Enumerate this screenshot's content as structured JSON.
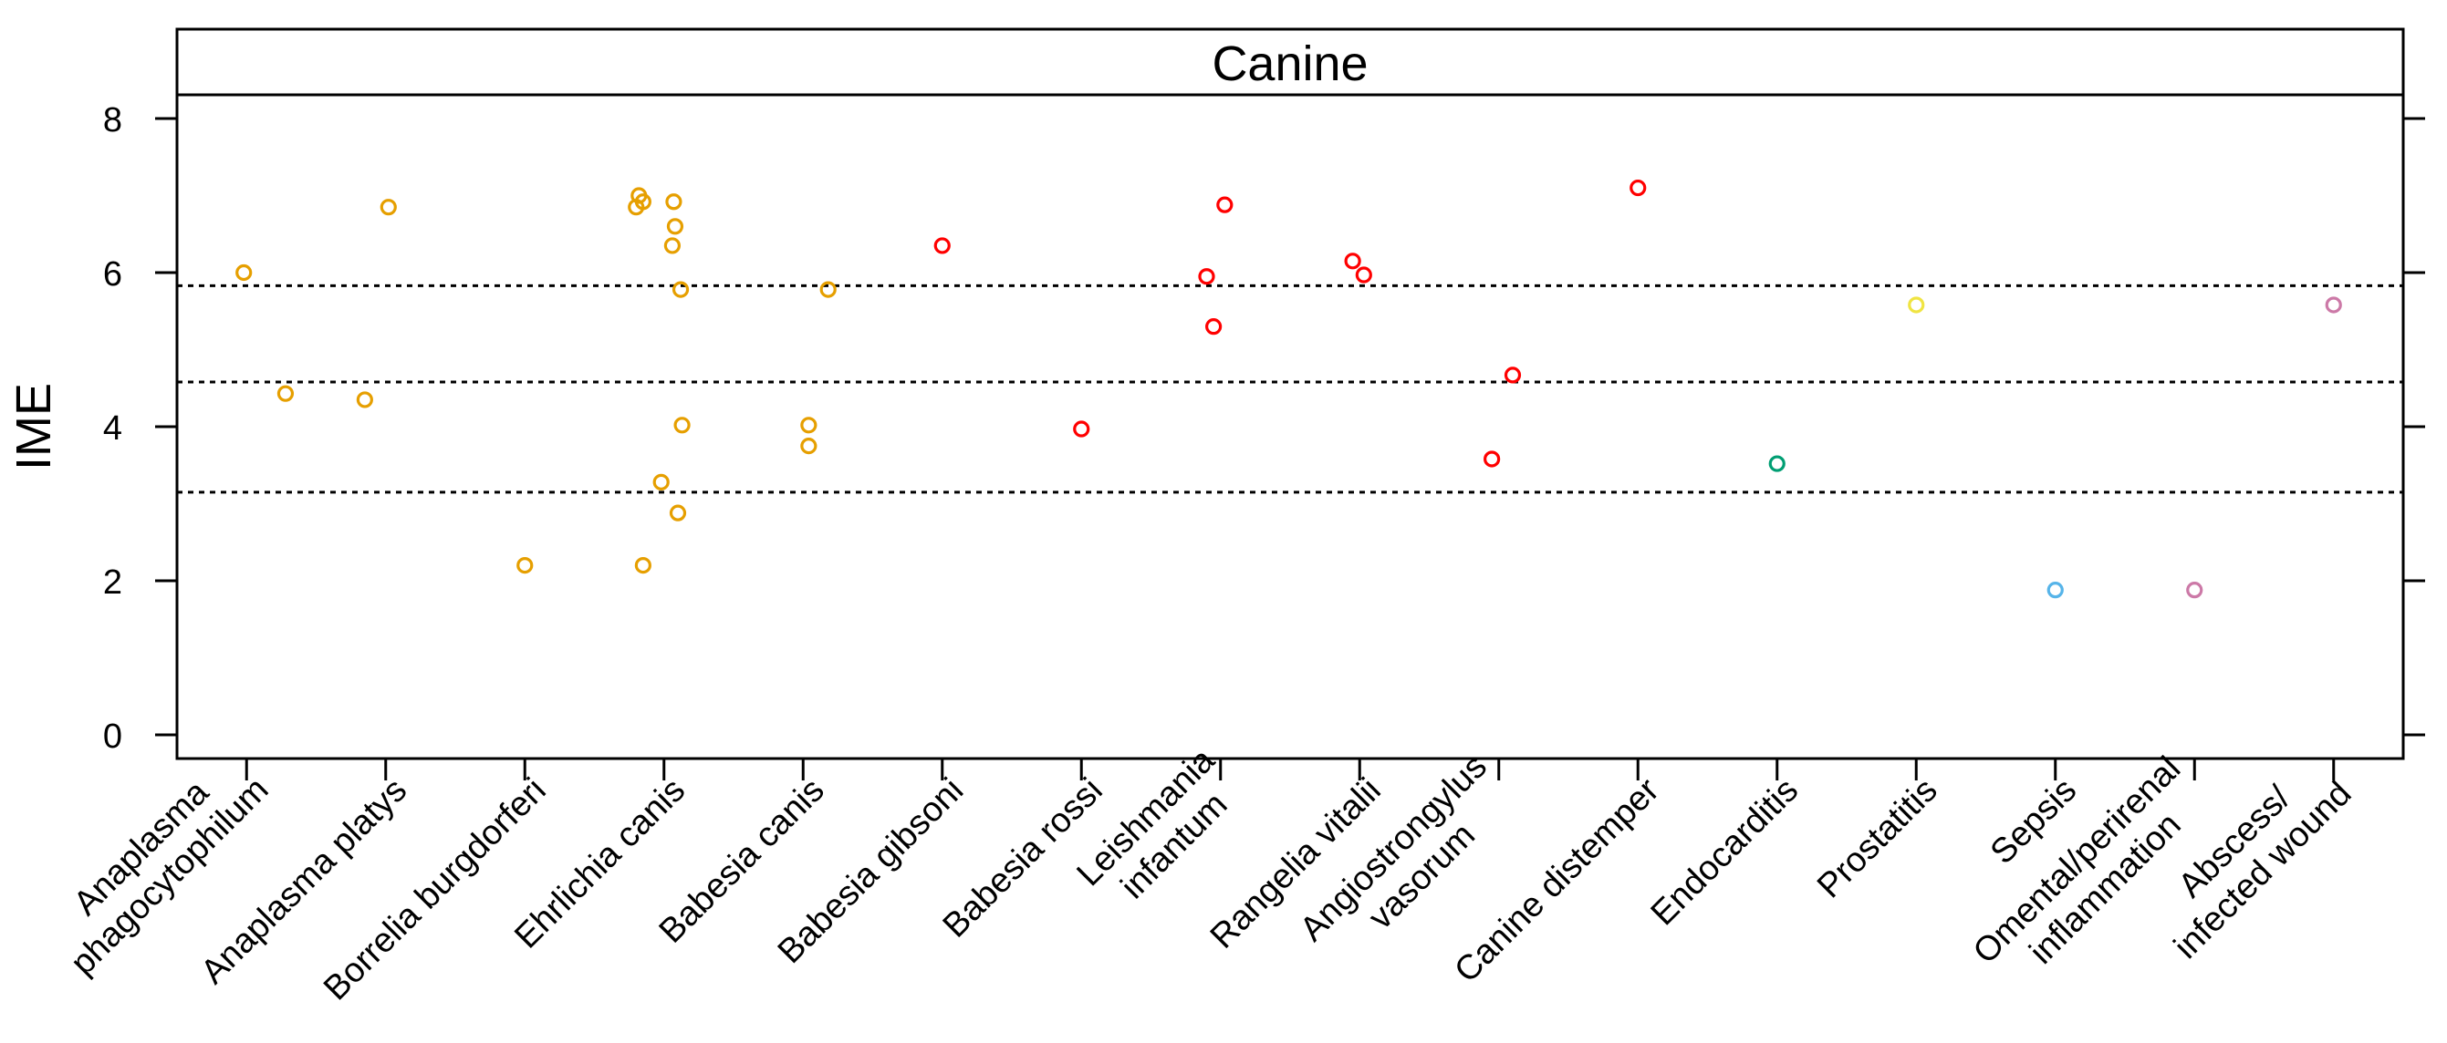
{
  "chart_data": {
    "type": "scatter",
    "title": "Canine",
    "ylabel": "IME",
    "xlabel": "",
    "ylim": [
      -0.3,
      9.2
    ],
    "yticks": [
      0,
      2,
      4,
      6,
      8
    ],
    "reference_lines": [
      5.83,
      4.58,
      3.15
    ],
    "categories": [
      [
        "Anaplasma",
        "phagocytophilum"
      ],
      [
        "Anaplasma platys"
      ],
      [
        "Borrelia burgdorferi"
      ],
      [
        "Ehrlichia canis"
      ],
      [
        "Babesia canis"
      ],
      [
        "Babesia gibsoni"
      ],
      [
        "Babesia rossi"
      ],
      [
        "Leishmania",
        "infantum"
      ],
      [
        "Rangelia vitalii"
      ],
      [
        "Angiostrongylus",
        "vasorum"
      ],
      [
        "Canine distemper"
      ],
      [
        "Endocarditis"
      ],
      [
        "Prostatitis"
      ],
      [
        "Sepsis"
      ],
      [
        "Omental/perirenal",
        "inflammation"
      ],
      [
        "Abscess/",
        "infected wound"
      ]
    ],
    "points": [
      {
        "category": 0,
        "jitter": -0.02,
        "y": 6.0,
        "color": "#E69F00"
      },
      {
        "category": 0,
        "jitter": 0.28,
        "y": 4.43,
        "color": "#E69F00"
      },
      {
        "category": 1,
        "jitter": -0.15,
        "y": 4.35,
        "color": "#E69F00"
      },
      {
        "category": 1,
        "jitter": 0.02,
        "y": 6.85,
        "color": "#E69F00"
      },
      {
        "category": 2,
        "jitter": 0.0,
        "y": 2.2,
        "color": "#E69F00"
      },
      {
        "category": 3,
        "jitter": -0.18,
        "y": 7.0,
        "color": "#E69F00"
      },
      {
        "category": 3,
        "jitter": -0.15,
        "y": 6.92,
        "color": "#E69F00"
      },
      {
        "category": 3,
        "jitter": -0.2,
        "y": 6.85,
        "color": "#E69F00"
      },
      {
        "category": 3,
        "jitter": 0.07,
        "y": 6.92,
        "color": "#E69F00"
      },
      {
        "category": 3,
        "jitter": 0.08,
        "y": 6.6,
        "color": "#E69F00"
      },
      {
        "category": 3,
        "jitter": 0.06,
        "y": 6.35,
        "color": "#E69F00"
      },
      {
        "category": 3,
        "jitter": 0.12,
        "y": 5.78,
        "color": "#E69F00"
      },
      {
        "category": 3,
        "jitter": 0.13,
        "y": 4.02,
        "color": "#E69F00"
      },
      {
        "category": 3,
        "jitter": -0.02,
        "y": 3.28,
        "color": "#E69F00"
      },
      {
        "category": 3,
        "jitter": 0.1,
        "y": 2.88,
        "color": "#E69F00"
      },
      {
        "category": 3,
        "jitter": -0.15,
        "y": 2.2,
        "color": "#E69F00"
      },
      {
        "category": 4,
        "jitter": 0.18,
        "y": 5.78,
        "color": "#E69F00"
      },
      {
        "category": 4,
        "jitter": 0.04,
        "y": 4.02,
        "color": "#E69F00"
      },
      {
        "category": 4,
        "jitter": 0.04,
        "y": 3.75,
        "color": "#E69F00"
      },
      {
        "category": 5,
        "jitter": 0.0,
        "y": 6.35,
        "color": "#FF0000"
      },
      {
        "category": 6,
        "jitter": 0.0,
        "y": 3.97,
        "color": "#FF0000"
      },
      {
        "category": 7,
        "jitter": -0.1,
        "y": 5.95,
        "color": "#FF0000"
      },
      {
        "category": 7,
        "jitter": -0.05,
        "y": 5.3,
        "color": "#FF0000"
      },
      {
        "category": 7,
        "jitter": 0.03,
        "y": 6.88,
        "color": "#FF0000"
      },
      {
        "category": 8,
        "jitter": -0.05,
        "y": 6.15,
        "color": "#FF0000"
      },
      {
        "category": 8,
        "jitter": 0.03,
        "y": 5.97,
        "color": "#FF0000"
      },
      {
        "category": 9,
        "jitter": -0.05,
        "y": 3.58,
        "color": "#FF0000"
      },
      {
        "category": 9,
        "jitter": 0.1,
        "y": 4.67,
        "color": "#FF0000"
      },
      {
        "category": 10,
        "jitter": 0.0,
        "y": 7.1,
        "color": "#FF0000"
      },
      {
        "category": 11,
        "jitter": 0.0,
        "y": 3.52,
        "color": "#009E73"
      },
      {
        "category": 12,
        "jitter": 0.0,
        "y": 5.58,
        "color": "#F0E442"
      },
      {
        "category": 13,
        "jitter": 0.0,
        "y": 1.88,
        "color": "#56B4E9"
      },
      {
        "category": 14,
        "jitter": 0.0,
        "y": 1.88,
        "color": "#CC79A7"
      },
      {
        "category": 15,
        "jitter": 0.0,
        "y": 5.58,
        "color": "#CC79A7"
      }
    ],
    "grid": false,
    "legend": "none"
  }
}
